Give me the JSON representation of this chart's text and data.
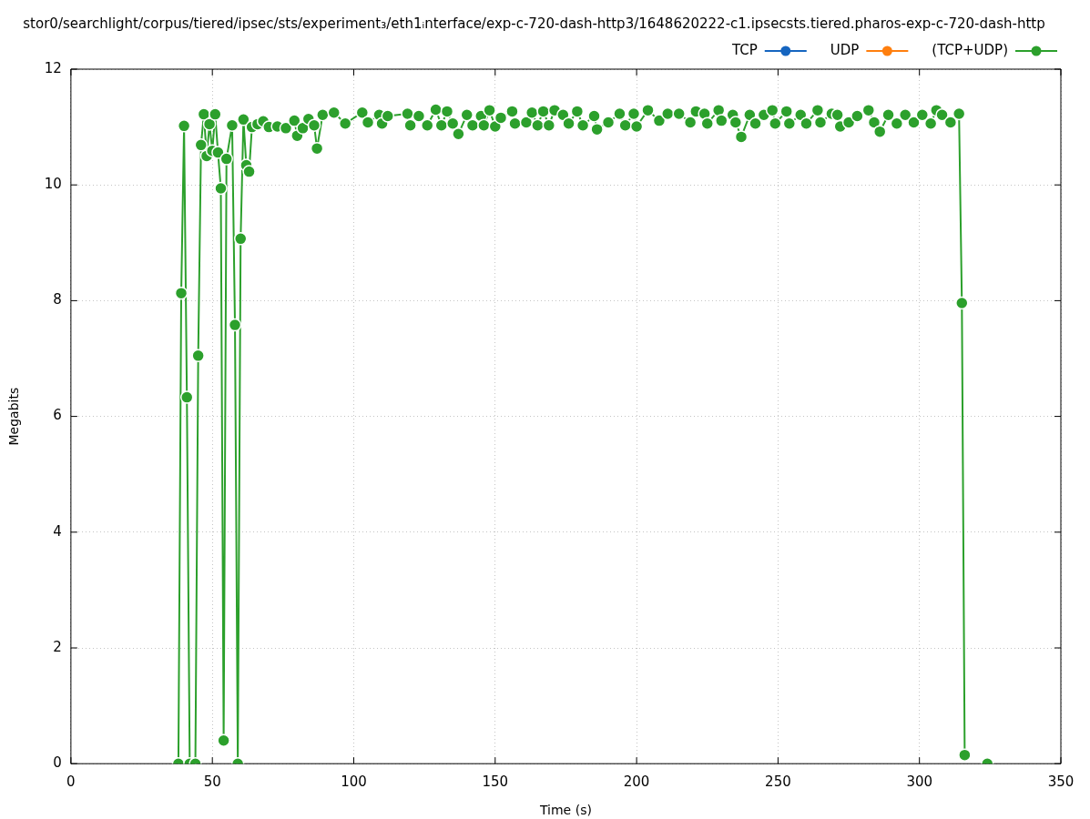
{
  "chart_data": {
    "type": "line",
    "title": "stor0/searchlight/corpus/tiered/ipsec/sts/experiment₃/eth1ᵢnterface/exp-c-720-dash-http3/1648620222-c1.ipsecsts.tiered.pharos-exp-c-720-dash-http",
    "xlabel": "Time (s)",
    "ylabel": "Megabits",
    "x": [
      38,
      39,
      40,
      41,
      42,
      44,
      45,
      46,
      47,
      48,
      49,
      50,
      51,
      52,
      53,
      54,
      55,
      57,
      58,
      59,
      60,
      61,
      62,
      63,
      64,
      66,
      68,
      70,
      73,
      76,
      79,
      80,
      82,
      84,
      86,
      87,
      89,
      93,
      97,
      103,
      105,
      109,
      110,
      112,
      119,
      120,
      123,
      126,
      129,
      131,
      133,
      135,
      137,
      140,
      142,
      145,
      146,
      148,
      150,
      152,
      156,
      157,
      161,
      163,
      165,
      167,
      169,
      171,
      174,
      176,
      179,
      181,
      185,
      186,
      190,
      194,
      196,
      199,
      200,
      204,
      208,
      211,
      215,
      219,
      221,
      224,
      225,
      229,
      230,
      234,
      235,
      237,
      240,
      242,
      245,
      248,
      249,
      253,
      254,
      258,
      260,
      264,
      265,
      269,
      271,
      272,
      275,
      278,
      282,
      284,
      286,
      289,
      292,
      295,
      298,
      301,
      304,
      306,
      308,
      311,
      314,
      315,
      316,
      320,
      324
    ],
    "series": [
      {
        "name": "TCP",
        "color": "#1565c0",
        "values": [
          null,
          null,
          null,
          null,
          null,
          null,
          null,
          null,
          null,
          null,
          null,
          null,
          null,
          null,
          null,
          null,
          null,
          null,
          null,
          null,
          null,
          null,
          null,
          null,
          null,
          null,
          null,
          null,
          null,
          null,
          null,
          null,
          null,
          null,
          null,
          null,
          null,
          null,
          null,
          null,
          null,
          null,
          null,
          null,
          null,
          null,
          null,
          null,
          null,
          null,
          null,
          null,
          null,
          null,
          null,
          null,
          null,
          null,
          null,
          null,
          null,
          null,
          null,
          null,
          null,
          null,
          null,
          null,
          null,
          null,
          null,
          null,
          null,
          null,
          null,
          null,
          null,
          null,
          null,
          null,
          null,
          null,
          null,
          null,
          null,
          null,
          null,
          null,
          null,
          null,
          null,
          null,
          null,
          null,
          null,
          null,
          null,
          null,
          null,
          null,
          null,
          null,
          null,
          null,
          null,
          null,
          null,
          null,
          null,
          null,
          null,
          null,
          null,
          null,
          null,
          null,
          null,
          null,
          null,
          null,
          null,
          null,
          null,
          null,
          null
        ]
      },
      {
        "name": "UDP",
        "color": "#ff7f0e",
        "values": [
          null,
          null,
          null,
          null,
          null,
          null,
          null,
          null,
          null,
          null,
          null,
          null,
          null,
          null,
          null,
          null,
          null,
          null,
          null,
          null,
          null,
          null,
          null,
          null,
          null,
          null,
          null,
          null,
          null,
          null,
          null,
          null,
          null,
          null,
          null,
          null,
          null,
          null,
          null,
          null,
          null,
          null,
          null,
          null,
          null,
          null,
          null,
          null,
          null,
          null,
          null,
          null,
          null,
          null,
          null,
          null,
          null,
          null,
          null,
          null,
          null,
          null,
          null,
          null,
          null,
          null,
          null,
          null,
          null,
          null,
          null,
          null,
          null,
          null,
          null,
          null,
          null,
          null,
          null,
          null,
          null,
          null,
          null,
          null,
          null,
          null,
          null,
          null,
          null,
          null,
          null,
          null,
          null,
          null,
          null,
          null,
          null,
          null,
          null,
          null,
          null,
          null,
          null,
          null,
          null,
          null,
          null,
          null,
          null,
          null,
          null,
          null,
          null,
          null,
          null,
          null,
          null,
          null,
          null,
          null,
          null,
          null,
          null,
          null,
          null
        ]
      },
      {
        "name": "(TCP+UDP)",
        "color": "#2ca02c",
        "values": [
          0,
          8.13,
          11.02,
          6.33,
          0,
          0,
          7.05,
          10.69,
          11.22,
          10.5,
          11.05,
          10.59,
          11.22,
          10.56,
          9.94,
          0.4,
          10.45,
          11.03,
          7.58,
          0,
          9.07,
          11.13,
          10.34,
          10.23,
          11,
          11.05,
          11.1,
          11,
          11.01,
          10.98,
          11.11,
          10.85,
          10.98,
          11.14,
          11.03,
          10.63,
          11.21,
          11.25,
          11.06,
          11.25,
          11.08,
          11.21,
          11.06,
          11.19,
          11.23,
          11.03,
          11.19,
          11.03,
          11.3,
          11.03,
          11.27,
          11.06,
          10.88,
          11.21,
          11.03,
          11.19,
          11.03,
          11.29,
          11.01,
          11.16,
          11.27,
          11.06,
          11.08,
          11.25,
          11.03,
          11.27,
          11.03,
          11.29,
          11.21,
          11.06,
          11.27,
          11.03,
          11.19,
          10.96,
          11.08,
          11.23,
          11.03,
          11.23,
          11.01,
          11.29,
          11.11,
          11.23,
          11.23,
          11.08,
          11.27,
          11.23,
          11.06,
          11.29,
          11.11,
          11.21,
          11.08,
          10.83,
          11.21,
          11.06,
          11.21,
          11.29,
          11.06,
          11.27,
          11.06,
          11.21,
          11.06,
          11.29,
          11.08,
          11.23,
          11.21,
          11.01,
          11.08,
          11.19,
          11.29,
          11.08,
          10.92,
          11.21,
          11.06,
          11.21,
          11.08,
          11.21,
          11.06,
          11.29,
          11.21,
          11.08,
          11.23,
          7.96,
          0.15,
          null,
          0
        ]
      }
    ],
    "xlim": [
      0,
      350
    ],
    "ylim": [
      0,
      12
    ],
    "xticks": [
      0,
      50,
      100,
      150,
      200,
      250,
      300,
      350
    ],
    "yticks": [
      0,
      2,
      4,
      6,
      8,
      10,
      12
    ],
    "grid": true,
    "legend": "top right",
    "marker": "circle",
    "line_style": "solid"
  }
}
